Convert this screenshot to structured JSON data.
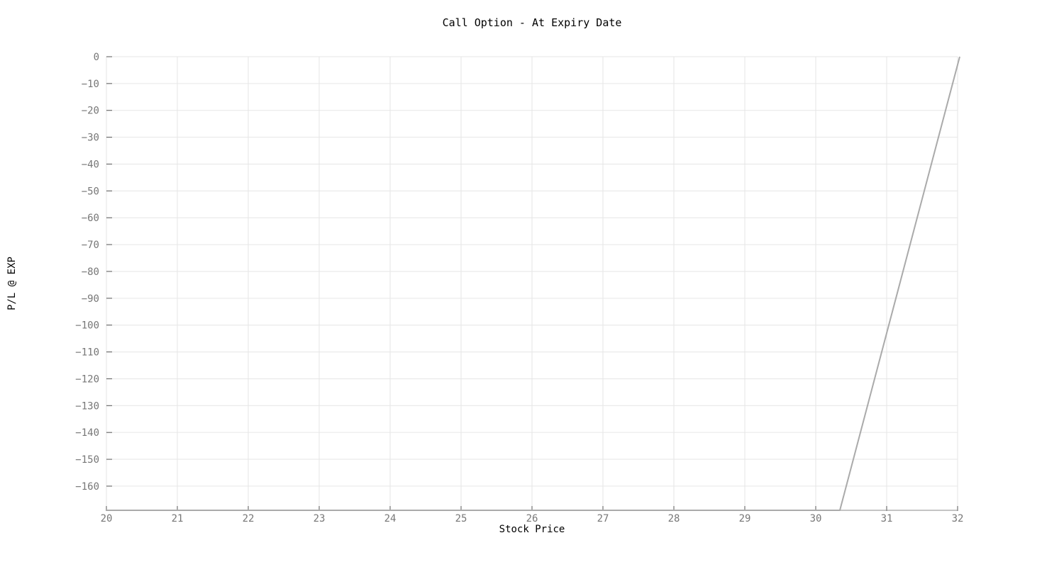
{
  "chart_data": {
    "type": "line",
    "title": "Call Option - At Expiry Date",
    "xlabel": "Stock Price",
    "ylabel": "P/L @ EXP",
    "xlim": [
      20,
      32
    ],
    "ylim": [
      -169,
      0
    ],
    "x_ticks": [
      20,
      21,
      22,
      23,
      24,
      25,
      26,
      27,
      28,
      29,
      30,
      31,
      32
    ],
    "y_ticks": [
      0,
      -10,
      -20,
      -30,
      -40,
      -50,
      -60,
      -70,
      -80,
      -90,
      -100,
      -110,
      -120,
      -130,
      -140,
      -150,
      -160
    ],
    "grid": true,
    "series": [
      {
        "color": "#aaaaaa",
        "x": [
          20,
          30.34,
          32.03
        ],
        "y": [
          -169,
          -169,
          0
        ]
      }
    ]
  }
}
